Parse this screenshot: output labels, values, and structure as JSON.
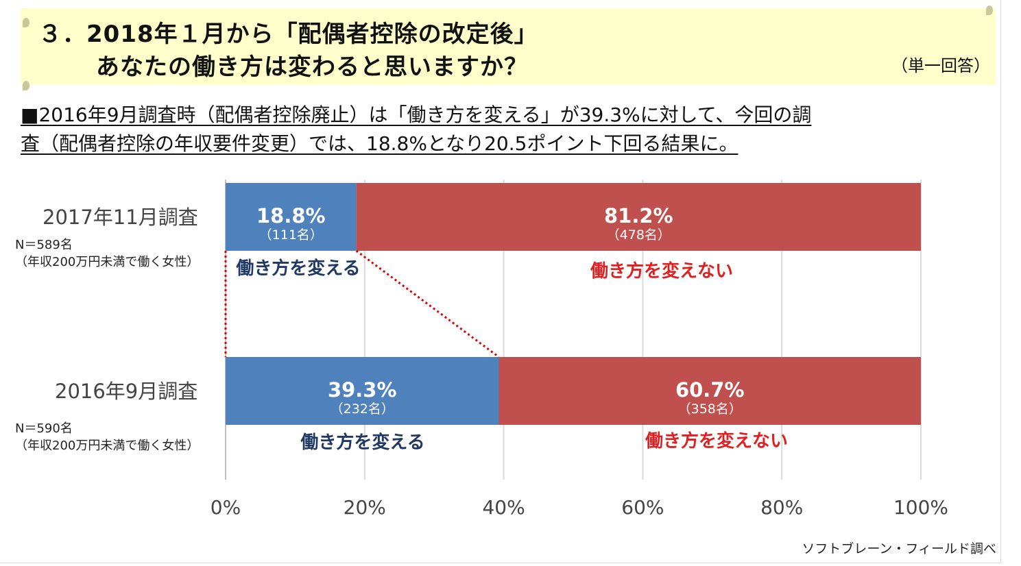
{
  "header": {
    "title_line1": "３．2018年１月から「配偶者控除の改定後」",
    "title_line2": "あなたの働き方は変わると思いますか？",
    "answer_type": "（単一回答）"
  },
  "summary": {
    "line1": "■2016年9月調査時（配偶者控除廃止）は「働き方を変える」が39.3%に対して、今回の調",
    "line2": "査（配偶者控除の年収要件変更）では、18.8%となり20.5ポイント下回る結果に。"
  },
  "groups": [
    {
      "survey": "2017年11月調査",
      "n": "N＝589名",
      "population": "（年収200万円未満で働く女性）"
    },
    {
      "survey": "2016年9月調査",
      "n": "N＝590名",
      "population": "（年収200万円未満で働く女性）"
    }
  ],
  "source": "ソフトブレーン・フィールド調べ",
  "colors": {
    "change": "#4f81bd",
    "no_change": "#c0504d",
    "change_text": "#1f3864",
    "no_change_text": "#e02020",
    "connector": "#e00000",
    "grid": "#d9d9d9"
  },
  "chart_data": {
    "type": "bar",
    "orientation": "horizontal",
    "stacked": true,
    "categories": [
      "2017年11月調査",
      "2016年9月調査"
    ],
    "series": [
      {
        "name": "働き方を変える",
        "values": [
          18.8,
          39.3
        ],
        "value_labels": [
          "18.8%",
          "39.3%"
        ],
        "count_labels": [
          "（111名）",
          "（232名）"
        ]
      },
      {
        "name": "働き方を変えない",
        "values": [
          81.2,
          60.7
        ],
        "value_labels": [
          "81.2%",
          "60.7%"
        ],
        "count_labels": [
          "（478名）",
          "（358名）"
        ]
      }
    ],
    "xlim": [
      0,
      100
    ],
    "x_ticks": [
      0,
      20,
      40,
      60,
      80,
      100
    ],
    "x_tick_labels": [
      "0%",
      "20%",
      "40%",
      "60%",
      "80%",
      "100%"
    ],
    "grid": true,
    "connector_lines": true
  }
}
